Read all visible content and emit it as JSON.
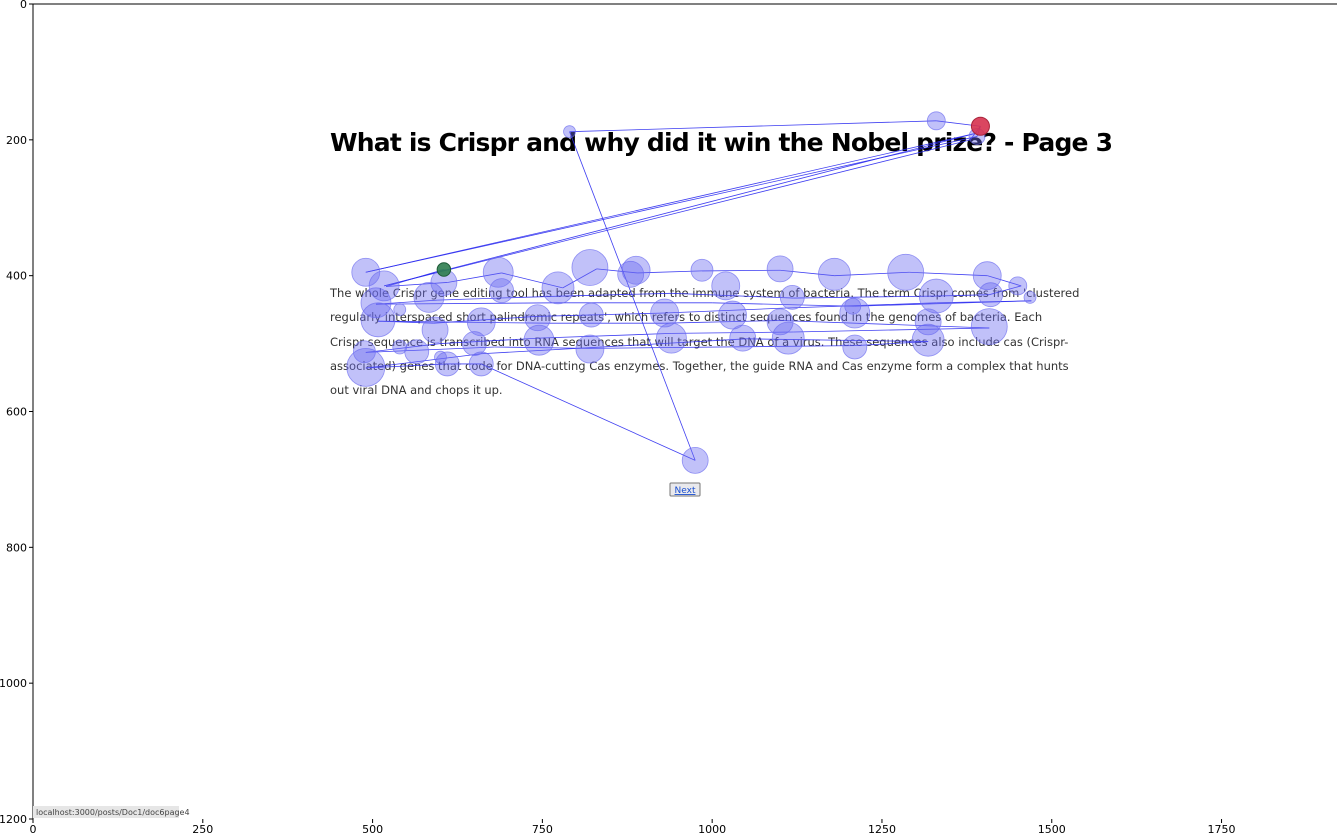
{
  "page": {
    "title": "What is Crispr and why did it win the Nobel prize? - Page 3",
    "paragraph_lines": [
      "The whole Crispr gene editing tool has been adapted from the immune system of bacteria. The term Crispr comes from 'clustered",
      "regularly interspaced short palindromic repeats', which refers to distinct sequences found in the genomes of bacteria. Each",
      "Crispr sequence is transcribed into RNA sequences that will target the DNA of a virus. These sequences also include cas (Crispr-",
      "associated) genes that code for DNA-cutting Cas enzymes. Together, the guide RNA and Cas enzyme form a complex that hunts",
      "out viral DNA and chops it up."
    ],
    "next_button_label": "Next",
    "status_url": "localhost:3000/posts/Doc1/doc6page4"
  },
  "colors": {
    "fixation_fill": "#6b6bf0",
    "scanpath_line": "#2a2af0",
    "start_fixation": "#2e7d4f",
    "end_fixation": "#d6324f"
  },
  "chart_data": {
    "type": "scatter",
    "title": "",
    "xlabel": "",
    "ylabel": "",
    "xlim": [
      0,
      1920
    ],
    "ylim": [
      1200,
      0
    ],
    "x_ticks": [
      0,
      250,
      500,
      750,
      1000,
      1250,
      1500,
      1750
    ],
    "y_ticks": [
      0,
      200,
      400,
      600,
      800,
      1000,
      1200
    ],
    "grid": false,
    "legend": "none",
    "start_fixation": {
      "x": 605,
      "y": 391,
      "r": 9
    },
    "end_fixation": {
      "x": 1395,
      "y": 180,
      "r": 12
    },
    "fixations": [
      {
        "x": 490,
        "y": 395,
        "r": 14
      },
      {
        "x": 517,
        "y": 415,
        "r": 15
      },
      {
        "x": 605,
        "y": 410,
        "r": 13
      },
      {
        "x": 685,
        "y": 395,
        "r": 15
      },
      {
        "x": 690,
        "y": 422,
        "r": 12
      },
      {
        "x": 773,
        "y": 418,
        "r": 16
      },
      {
        "x": 820,
        "y": 388,
        "r": 18
      },
      {
        "x": 880,
        "y": 398,
        "r": 13
      },
      {
        "x": 888,
        "y": 392,
        "r": 14
      },
      {
        "x": 985,
        "y": 392,
        "r": 11
      },
      {
        "x": 1020,
        "y": 415,
        "r": 14
      },
      {
        "x": 1100,
        "y": 390,
        "r": 13
      },
      {
        "x": 1180,
        "y": 398,
        "r": 16
      },
      {
        "x": 1285,
        "y": 395,
        "r": 18
      },
      {
        "x": 1405,
        "y": 400,
        "r": 14
      },
      {
        "x": 1450,
        "y": 415,
        "r": 9
      },
      {
        "x": 1468,
        "y": 432,
        "r": 6
      },
      {
        "x": 505,
        "y": 440,
        "r": 15
      },
      {
        "x": 583,
        "y": 432,
        "r": 15
      },
      {
        "x": 1118,
        "y": 432,
        "r": 12
      },
      {
        "x": 1330,
        "y": 430,
        "r": 17
      },
      {
        "x": 1410,
        "y": 428,
        "r": 12
      },
      {
        "x": 508,
        "y": 465,
        "r": 17
      },
      {
        "x": 592,
        "y": 480,
        "r": 13
      },
      {
        "x": 660,
        "y": 468,
        "r": 14
      },
      {
        "x": 743,
        "y": 462,
        "r": 13
      },
      {
        "x": 822,
        "y": 458,
        "r": 12
      },
      {
        "x": 930,
        "y": 455,
        "r": 14
      },
      {
        "x": 1030,
        "y": 458,
        "r": 14
      },
      {
        "x": 1100,
        "y": 468,
        "r": 13
      },
      {
        "x": 1210,
        "y": 455,
        "r": 15
      },
      {
        "x": 1207,
        "y": 445,
        "r": 8
      },
      {
        "x": 1318,
        "y": 468,
        "r": 13
      },
      {
        "x": 1408,
        "y": 475,
        "r": 18
      },
      {
        "x": 745,
        "y": 495,
        "r": 15
      },
      {
        "x": 940,
        "y": 492,
        "r": 15
      },
      {
        "x": 1045,
        "y": 492,
        "r": 13
      },
      {
        "x": 1112,
        "y": 492,
        "r": 16
      },
      {
        "x": 1318,
        "y": 495,
        "r": 16
      },
      {
        "x": 488,
        "y": 512,
        "r": 11
      },
      {
        "x": 565,
        "y": 512,
        "r": 12
      },
      {
        "x": 650,
        "y": 500,
        "r": 12
      },
      {
        "x": 820,
        "y": 508,
        "r": 14
      },
      {
        "x": 1210,
        "y": 505,
        "r": 12
      },
      {
        "x": 540,
        "y": 450,
        "r": 6
      },
      {
        "x": 600,
        "y": 520,
        "r": 6
      },
      {
        "x": 540,
        "y": 505,
        "r": 7
      },
      {
        "x": 490,
        "y": 535,
        "r": 19
      },
      {
        "x": 610,
        "y": 530,
        "r": 12
      },
      {
        "x": 660,
        "y": 530,
        "r": 12
      },
      {
        "x": 975,
        "y": 672,
        "r": 13
      },
      {
        "x": 790,
        "y": 188,
        "r": 6
      },
      {
        "x": 1330,
        "y": 172,
        "r": 9
      },
      {
        "x": 1390,
        "y": 195,
        "r": 8
      }
    ],
    "scanpath": [
      [
        605,
        391
      ],
      [
        520,
        416
      ],
      [
        610,
        410
      ],
      [
        690,
        396
      ],
      [
        780,
        418
      ],
      [
        830,
        390
      ],
      [
        890,
        396
      ],
      [
        985,
        393
      ],
      [
        1100,
        392
      ],
      [
        1180,
        400
      ],
      [
        1290,
        395
      ],
      [
        1405,
        400
      ],
      [
        1455,
        415
      ],
      [
        1408,
        428
      ],
      [
        1330,
        430
      ],
      [
        1120,
        433
      ],
      [
        940,
        426
      ],
      [
        780,
        430
      ],
      [
        595,
        436
      ],
      [
        505,
        442
      ],
      [
        770,
        440
      ],
      [
        1000,
        440
      ],
      [
        1210,
        445
      ],
      [
        1470,
        437
      ],
      [
        1330,
        440
      ],
      [
        1100,
        448
      ],
      [
        930,
        455
      ],
      [
        740,
        460
      ],
      [
        590,
        470
      ],
      [
        508,
        467
      ],
      [
        760,
        470
      ],
      [
        930,
        470
      ],
      [
        1100,
        466
      ],
      [
        1408,
        477
      ],
      [
        1120,
        483
      ],
      [
        940,
        485
      ],
      [
        745,
        492
      ],
      [
        600,
        500
      ],
      [
        490,
        513
      ],
      [
        680,
        505
      ],
      [
        820,
        507
      ],
      [
        1210,
        503
      ],
      [
        1318,
        497
      ],
      [
        1050,
        493
      ],
      [
        660,
        515
      ],
      [
        490,
        536
      ],
      [
        610,
        530
      ],
      [
        660,
        530
      ],
      [
        975,
        672
      ],
      [
        790,
        188
      ],
      [
        1330,
        172
      ],
      [
        1395,
        180
      ],
      [
        1390,
        195
      ],
      [
        490,
        395
      ],
      [
        1390,
        190
      ],
      [
        517,
        415
      ],
      [
        1380,
        200
      ],
      [
        1395,
        180
      ]
    ]
  }
}
